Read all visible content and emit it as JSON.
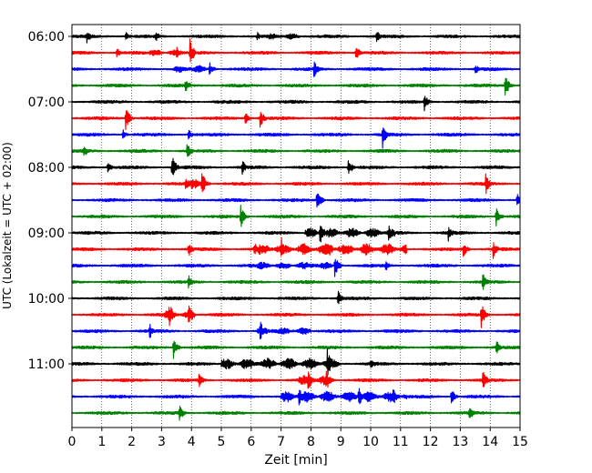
{
  "chart_data": {
    "type": "line",
    "subtype": "helicorder",
    "title": "",
    "xlabel": "Zeit  [min]",
    "ylabel": "UTC (Lokalzeit = UTC + 02:00)",
    "xlim": [
      0,
      15
    ],
    "x_ticks": [
      "0",
      "1",
      "2",
      "3",
      "4",
      "5",
      "6",
      "7",
      "8",
      "9",
      "10",
      "11",
      "12",
      "13",
      "14",
      "15"
    ],
    "y_tick_labels": [
      "06:00",
      "07:00",
      "08:00",
      "09:00",
      "10:00",
      "11:00"
    ],
    "trace_start": "06:00",
    "trace_interval_min": 15,
    "trace_count": 24,
    "trace_colors": [
      "#000000",
      "#ff0000",
      "#0000ff",
      "#008000"
    ],
    "grid": "vertical dotted",
    "legend": "none",
    "events": [
      {
        "trace": 0,
        "min": 0.5,
        "amp": 0.45
      },
      {
        "trace": 0,
        "min": 1.8,
        "amp": 0.3
      },
      {
        "trace": 0,
        "min": 2.8,
        "amp": 0.35
      },
      {
        "trace": 0,
        "min": 6.2,
        "amp": 0.3
      },
      {
        "trace": 0,
        "min": 10.2,
        "amp": 0.4
      },
      {
        "trace": 1,
        "min": 1.5,
        "amp": 0.35
      },
      {
        "trace": 1,
        "min": 3.5,
        "amp": 0.4
      },
      {
        "trace": 1,
        "min": 3.95,
        "amp": 0.9
      },
      {
        "trace": 1,
        "min": 9.5,
        "amp": 0.6
      },
      {
        "trace": 2,
        "min": 4.6,
        "amp": 0.45
      },
      {
        "trace": 2,
        "min": 8.1,
        "amp": 0.6
      },
      {
        "trace": 2,
        "min": 13.5,
        "amp": 0.35
      },
      {
        "trace": 3,
        "min": 3.8,
        "amp": 0.5
      },
      {
        "trace": 3,
        "min": 14.5,
        "amp": 0.8
      },
      {
        "trace": 4,
        "min": 11.8,
        "amp": 0.6
      },
      {
        "trace": 5,
        "min": 1.8,
        "amp": 0.85
      },
      {
        "trace": 5,
        "min": 5.8,
        "amp": 0.4
      },
      {
        "trace": 5,
        "min": 6.3,
        "amp": 0.65
      },
      {
        "trace": 6,
        "min": 1.7,
        "amp": 0.35
      },
      {
        "trace": 6,
        "min": 3.9,
        "amp": 0.35
      },
      {
        "trace": 6,
        "min": 10.4,
        "amp": 0.85
      },
      {
        "trace": 7,
        "min": 0.4,
        "amp": 0.4
      },
      {
        "trace": 7,
        "min": 3.85,
        "amp": 0.65
      },
      {
        "trace": 8,
        "min": 1.2,
        "amp": 0.4
      },
      {
        "trace": 8,
        "min": 3.35,
        "amp": 0.85
      },
      {
        "trace": 8,
        "min": 5.7,
        "amp": 0.5
      },
      {
        "trace": 8,
        "min": 9.25,
        "amp": 0.6
      },
      {
        "trace": 9,
        "min": 3.8,
        "amp": 0.45
      },
      {
        "trace": 9,
        "min": 4.35,
        "amp": 0.8
      },
      {
        "trace": 9,
        "min": 13.85,
        "amp": 0.7
      },
      {
        "trace": 10,
        "min": 8.2,
        "amp": 0.75
      },
      {
        "trace": 10,
        "min": 14.9,
        "amp": 0.5
      },
      {
        "trace": 11,
        "min": 5.65,
        "amp": 0.75
      },
      {
        "trace": 11,
        "min": 14.2,
        "amp": 0.6
      },
      {
        "trace": 12,
        "min": 8.3,
        "amp": 0.8
      },
      {
        "trace": 12,
        "min": 10.6,
        "amp": 0.6
      },
      {
        "trace": 12,
        "min": 12.6,
        "amp": 0.55
      },
      {
        "trace": 13,
        "min": 3.9,
        "amp": 0.55
      },
      {
        "trace": 13,
        "min": 6.1,
        "amp": 0.5
      },
      {
        "trace": 13,
        "min": 7.0,
        "amp": 0.85
      },
      {
        "trace": 13,
        "min": 8.6,
        "amp": 0.5
      },
      {
        "trace": 13,
        "min": 13.1,
        "amp": 0.5
      },
      {
        "trace": 13,
        "min": 14.1,
        "amp": 0.6
      },
      {
        "trace": 14,
        "min": 8.8,
        "amp": 0.75
      },
      {
        "trace": 14,
        "min": 10.5,
        "amp": 0.45
      },
      {
        "trace": 15,
        "min": 3.9,
        "amp": 0.5
      },
      {
        "trace": 15,
        "min": 13.75,
        "amp": 0.65
      },
      {
        "trace": 16,
        "min": 8.9,
        "amp": 0.55
      },
      {
        "trace": 17,
        "min": 3.25,
        "amp": 0.9
      },
      {
        "trace": 17,
        "min": 3.9,
        "amp": 0.7
      },
      {
        "trace": 17,
        "min": 13.7,
        "amp": 0.85
      },
      {
        "trace": 18,
        "min": 2.6,
        "amp": 0.5
      },
      {
        "trace": 18,
        "min": 6.3,
        "amp": 0.65
      },
      {
        "trace": 19,
        "min": 3.4,
        "amp": 0.7
      },
      {
        "trace": 19,
        "min": 14.2,
        "amp": 0.5
      },
      {
        "trace": 20,
        "min": 8.55,
        "amp": 0.95
      },
      {
        "trace": 20,
        "min": 10.0,
        "amp": 0.4
      },
      {
        "trace": 21,
        "min": 4.25,
        "amp": 0.55
      },
      {
        "trace": 21,
        "min": 7.9,
        "amp": 0.7
      },
      {
        "trace": 21,
        "min": 8.5,
        "amp": 0.8
      },
      {
        "trace": 21,
        "min": 13.75,
        "amp": 0.7
      },
      {
        "trace": 22,
        "min": 7.6,
        "amp": 0.6
      },
      {
        "trace": 22,
        "min": 9.6,
        "amp": 0.7
      },
      {
        "trace": 22,
        "min": 10.75,
        "amp": 0.65
      },
      {
        "trace": 22,
        "min": 12.7,
        "amp": 0.5
      },
      {
        "trace": 23,
        "min": 3.6,
        "amp": 0.55
      },
      {
        "trace": 23,
        "min": 13.3,
        "amp": 0.55
      }
    ],
    "noisy_segments": [
      {
        "trace": 0,
        "from": 6.5,
        "to": 7.7,
        "amp": 0.18
      },
      {
        "trace": 1,
        "from": 2.6,
        "to": 3.7,
        "amp": 0.2
      },
      {
        "trace": 2,
        "from": 3.4,
        "to": 4.8,
        "amp": 0.22
      },
      {
        "trace": 9,
        "from": 3.9,
        "to": 4.5,
        "amp": 0.3
      },
      {
        "trace": 12,
        "from": 7.8,
        "to": 10.8,
        "amp": 0.3
      },
      {
        "trace": 13,
        "from": 6.2,
        "to": 11.2,
        "amp": 0.35
      },
      {
        "trace": 14,
        "from": 6.2,
        "to": 9.0,
        "amp": 0.22
      },
      {
        "trace": 17,
        "from": 3.1,
        "to": 4.1,
        "amp": 0.3
      },
      {
        "trace": 18,
        "from": 6.2,
        "to": 8.0,
        "amp": 0.22
      },
      {
        "trace": 20,
        "from": 5.0,
        "to": 9.0,
        "amp": 0.35
      },
      {
        "trace": 21,
        "from": 7.6,
        "to": 8.8,
        "amp": 0.3
      },
      {
        "trace": 22,
        "from": 7.0,
        "to": 11.2,
        "amp": 0.35
      }
    ]
  }
}
